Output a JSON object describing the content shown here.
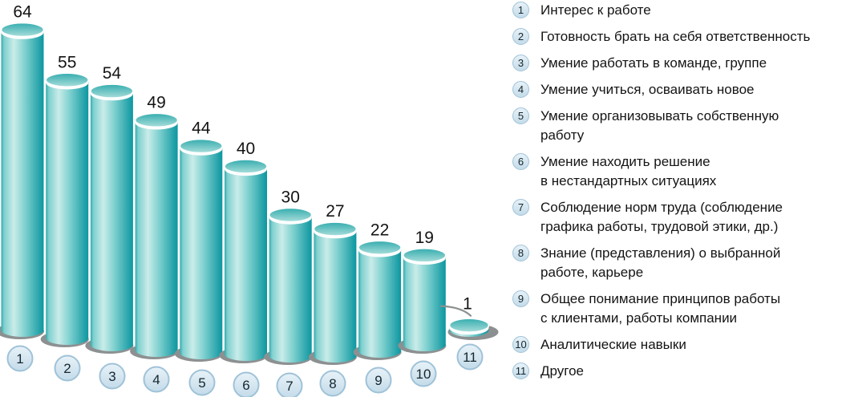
{
  "chart_data": {
    "type": "bar",
    "style": "3d-cylinder-perspective",
    "title": "",
    "xlabel": "",
    "ylabel": "",
    "grid": false,
    "legend_position": "right",
    "categories": [
      "1",
      "2",
      "3",
      "4",
      "5",
      "6",
      "7",
      "8",
      "9",
      "10",
      "11"
    ],
    "values": [
      64,
      55,
      54,
      49,
      44,
      40,
      30,
      27,
      22,
      19,
      1
    ],
    "legend": {
      "items": [
        {
          "num": "1",
          "lines": [
            "Интерес к работе"
          ]
        },
        {
          "num": "2",
          "lines": [
            "Готовность брать на себя ответственность"
          ]
        },
        {
          "num": "3",
          "lines": [
            "Умение работать в команде, группе"
          ]
        },
        {
          "num": "4",
          "lines": [
            "Умение учиться, осваивать новое"
          ]
        },
        {
          "num": "5",
          "lines": [
            "Умение организовывать собственную",
            "работу"
          ]
        },
        {
          "num": "6",
          "lines": [
            "Умение находить решение",
            "в нестандартных ситуациях"
          ]
        },
        {
          "num": "7",
          "lines": [
            "Соблюдение норм труда (соблюдение",
            "графика работы, трудовой этики, др.)"
          ]
        },
        {
          "num": "8",
          "lines": [
            "Знание (представления) о выбранной",
            "работе, карьере"
          ]
        },
        {
          "num": "9",
          "lines": [
            "Общее понимание принципов работы",
            "с клиентами, работы компании"
          ]
        },
        {
          "num": "10",
          "lines": [
            "Аналитические навыки"
          ]
        },
        {
          "num": "11",
          "lines": [
            "Другое"
          ]
        }
      ]
    },
    "colors": {
      "bar_edge": "#33abae",
      "bar_mid": "#7fd0cf",
      "bar_highlight": "#c9ece9",
      "bar_mid2": "#82d2d0",
      "bar_dark": "#0c96a0",
      "top_back": "#35acae",
      "top_front": "#a8dedb",
      "rim_white": "#ffffff",
      "shadow": "#8d9091",
      "badge_fill_light": "#e8f2f8",
      "badge_fill_dark": "#c3dbe9",
      "badge_border": "#9fc2d8",
      "badge_text": "#16262e",
      "text": "#141414"
    }
  }
}
